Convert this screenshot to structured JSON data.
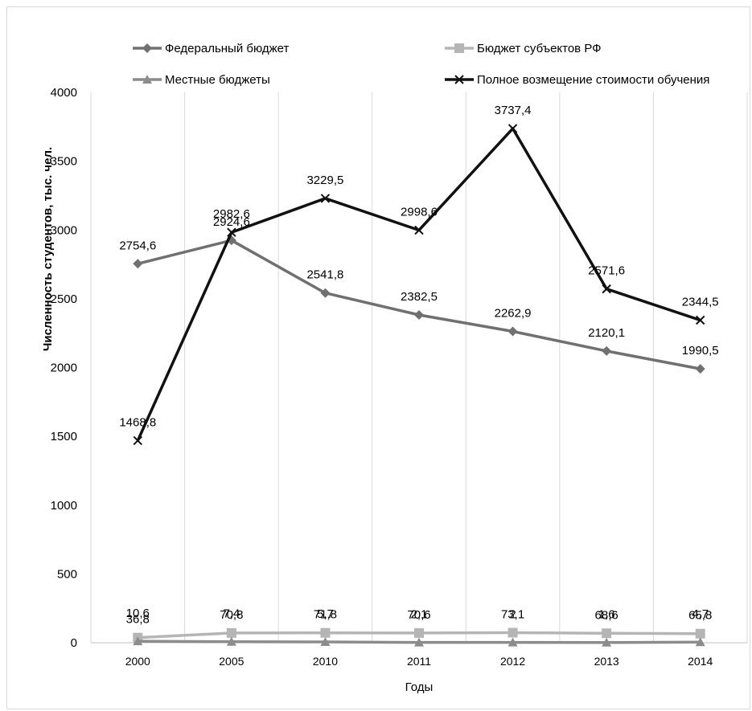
{
  "chart_data": {
    "type": "line",
    "title": "",
    "xlabel": "Годы",
    "ylabel": "Численность студентов, тыс. чел.",
    "categories": [
      "2000",
      "2005",
      "2010",
      "2011",
      "2012",
      "2013",
      "2014"
    ],
    "yticks": [
      "0",
      "500",
      "1000",
      "1500",
      "2000",
      "2500",
      "3000",
      "3500",
      "4000"
    ],
    "ylim": [
      0,
      4000
    ],
    "grid": "vertical",
    "legend_position": "top",
    "series": [
      {
        "name": "Федеральный бюджет",
        "marker": "diamond",
        "color": "#707070",
        "values": [
          2754.6,
          2924.6,
          2541.8,
          2382.5,
          2262.9,
          2120.1,
          1990.5
        ],
        "labels": [
          "2754,6",
          "2924,6",
          "2541,8",
          "2382,5",
          "2262,9",
          "2120,1",
          "1990,5"
        ]
      },
      {
        "name": "Бюджет субъектов РФ",
        "marker": "square",
        "color": "#b5b5b5",
        "values": [
          36.8,
          70.8,
          71.8,
          70.6,
          73.1,
          68.6,
          65.8
        ],
        "labels": [
          "36,8",
          "70,8",
          "71,8",
          "70,6",
          "73,1",
          "68,6",
          "65,8"
        ]
      },
      {
        "name": "Местные бюджеты",
        "marker": "triangle",
        "color": "#8c8c8c",
        "values": [
          10.6,
          7.4,
          5.7,
          2.1,
          2,
          1.6,
          4.7
        ],
        "labels": [
          "10,6",
          "7,4",
          "5,7",
          "2,1",
          "2",
          "1,6",
          "4,7"
        ]
      },
      {
        "name": "Полное возмещение стоимости обучения",
        "marker": "x",
        "color": "#111111",
        "values": [
          1468.8,
          2982.6,
          3229.5,
          2998.6,
          3737.4,
          2571.6,
          2344.5
        ],
        "labels": [
          "1468,8",
          "2982,6",
          "3229,5",
          "2998,6",
          "3737,4",
          "2571,6",
          "2344,5"
        ]
      }
    ]
  }
}
